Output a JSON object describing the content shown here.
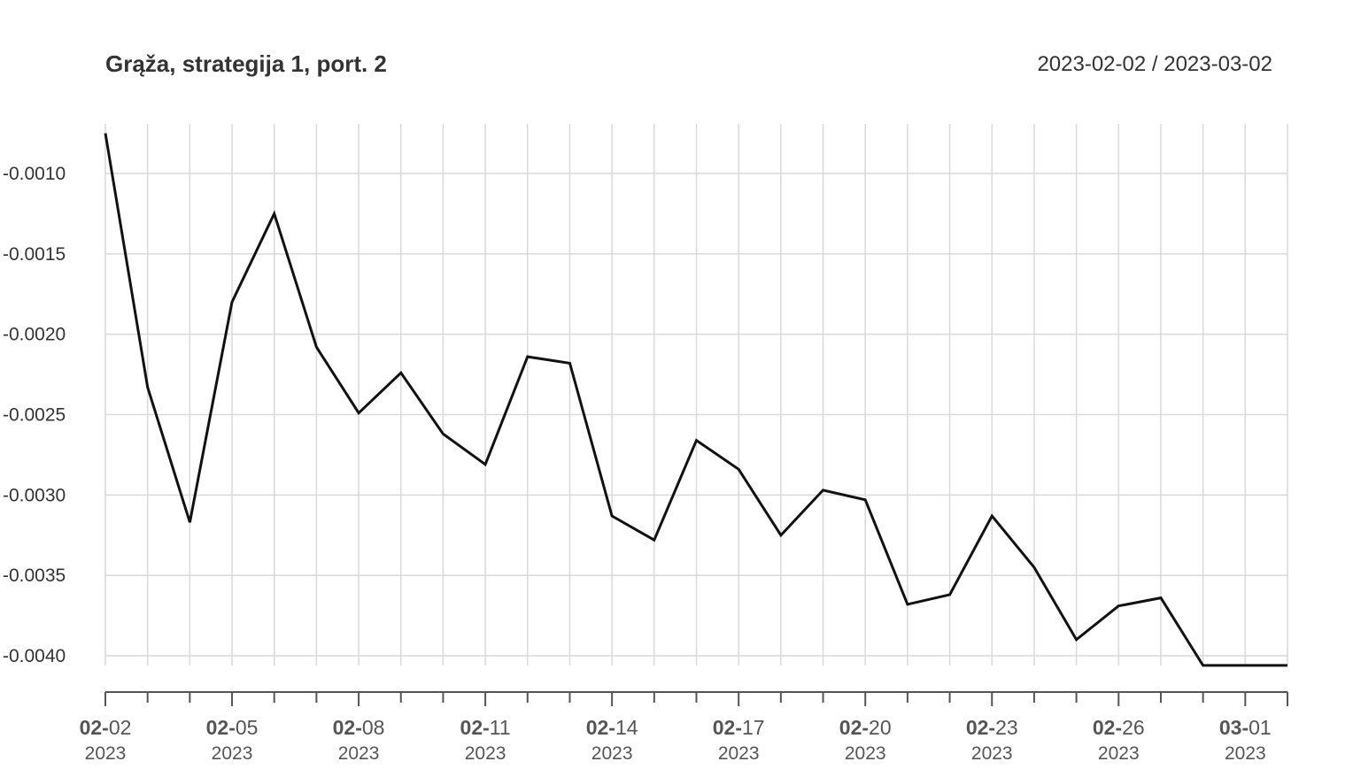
{
  "chart_data": {
    "type": "line",
    "title": "Grąža, strategija 1, port. 2",
    "date_range": "2023-02-02 / 2023-03-02",
    "xlabel": "",
    "ylabel": "",
    "grid": true,
    "ylim": [
      -0.00405,
      -0.00075
    ],
    "yticks": [
      "-0.0010",
      "-0.0015",
      "-0.0020",
      "-0.0025",
      "-0.0030",
      "-0.0035",
      "-0.0040"
    ],
    "ytick_values": [
      -0.001,
      -0.0015,
      -0.002,
      -0.0025,
      -0.003,
      -0.0035,
      -0.004
    ],
    "x": [
      "2023-02-02",
      "2023-02-03",
      "2023-02-04",
      "2023-02-05",
      "2023-02-06",
      "2023-02-07",
      "2023-02-08",
      "2023-02-09",
      "2023-02-10",
      "2023-02-11",
      "2023-02-12",
      "2023-02-13",
      "2023-02-14",
      "2023-02-15",
      "2023-02-16",
      "2023-02-17",
      "2023-02-18",
      "2023-02-19",
      "2023-02-20",
      "2023-02-21",
      "2023-02-22",
      "2023-02-23",
      "2023-02-24",
      "2023-02-25",
      "2023-02-26",
      "2023-02-27",
      "2023-02-28",
      "2023-03-01",
      "2023-03-02"
    ],
    "series": [
      {
        "values": [
          -0.00075,
          -0.00233,
          -0.00317,
          -0.0018,
          -0.00125,
          -0.00208,
          -0.00249,
          -0.00224,
          -0.00262,
          -0.00281,
          -0.00214,
          -0.00218,
          -0.00313,
          -0.00328,
          -0.00266,
          -0.00284,
          -0.00325,
          -0.00297,
          -0.00303,
          -0.00368,
          -0.00362,
          -0.00313,
          -0.00345,
          -0.0039,
          -0.00369,
          -0.00364,
          -0.00406,
          -0.00406,
          -0.00406
        ],
        "color": "#111111"
      }
    ],
    "xtick_labels": [
      {
        "date": "2023-02-02",
        "month": "02-",
        "day": "02",
        "year": "2023"
      },
      {
        "date": "2023-02-05",
        "month": "02-",
        "day": "05",
        "year": "2023"
      },
      {
        "date": "2023-02-08",
        "month": "02-",
        "day": "08",
        "year": "2023"
      },
      {
        "date": "2023-02-11",
        "month": "02-",
        "day": "11",
        "year": "2023"
      },
      {
        "date": "2023-02-14",
        "month": "02-",
        "day": "14",
        "year": "2023"
      },
      {
        "date": "2023-02-17",
        "month": "02-",
        "day": "17",
        "year": "2023"
      },
      {
        "date": "2023-02-20",
        "month": "02-",
        "day": "20",
        "year": "2023"
      },
      {
        "date": "2023-02-23",
        "month": "02-",
        "day": "23",
        "year": "2023"
      },
      {
        "date": "2023-02-26",
        "month": "02-",
        "day": "26",
        "year": "2023"
      },
      {
        "date": "2023-03-01",
        "month": "03-",
        "day": "01",
        "year": "2023"
      }
    ]
  }
}
